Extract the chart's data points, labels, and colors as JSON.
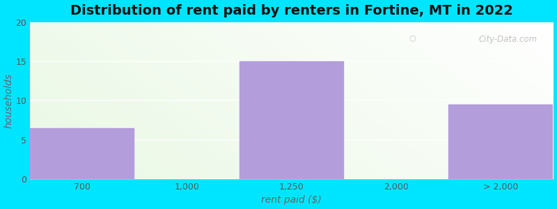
{
  "title": "Distribution of rent paid by renters in Fortine, MT in 2022",
  "xlabel": "rent paid ($)",
  "ylabel": "households",
  "bar_lefts": [
    0,
    1,
    2,
    3,
    4
  ],
  "bar_widths": [
    1,
    1,
    1,
    1,
    1
  ],
  "values": [
    6.5,
    0,
    15,
    0,
    9.5
  ],
  "xtick_positions": [
    0.5,
    1.5,
    2.5,
    3.5,
    4.5
  ],
  "xtick_labels": [
    "700",
    "1,000",
    "1,250",
    "2,000",
    "> 2,000"
  ],
  "bar_color": "#b39ddb",
  "bar_edge_color": "#b39ddb",
  "ylim": [
    0,
    20
  ],
  "yticks": [
    0,
    5,
    10,
    15,
    20
  ],
  "xlim": [
    0,
    5
  ],
  "bg_color": "#00e5ff",
  "title_fontsize": 14,
  "label_fontsize": 10,
  "tick_fontsize": 9,
  "watermark": "City-Data.com"
}
